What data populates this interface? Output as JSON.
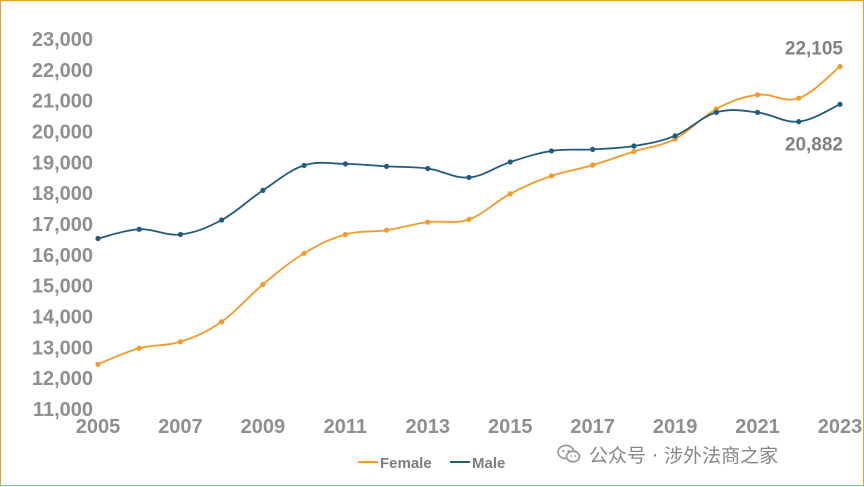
{
  "chart_data": {
    "type": "line",
    "x": [
      2005,
      2006,
      2007,
      2008,
      2009,
      2010,
      2011,
      2012,
      2013,
      2014,
      2015,
      2016,
      2017,
      2018,
      2019,
      2020,
      2021,
      2022,
      2023
    ],
    "xticks": [
      "2005",
      "2007",
      "2009",
      "2011",
      "2013",
      "2015",
      "2017",
      "2019",
      "2021",
      "2023"
    ],
    "yticks": [
      "11,000",
      "12,000",
      "13,000",
      "14,000",
      "15,000",
      "16,000",
      "17,000",
      "18,000",
      "19,000",
      "20,000",
      "21,000",
      "22,000",
      "23,000"
    ],
    "ylim": [
      11000,
      23000
    ],
    "grid": false,
    "legend_position": "bottom",
    "series": [
      {
        "name": "Female",
        "color": "#f39a2b",
        "values": [
          12450,
          12970,
          13180,
          13830,
          15040,
          16050,
          16660,
          16800,
          17060,
          17150,
          17980,
          18560,
          18910,
          19350,
          19760,
          20730,
          21190,
          21080,
          22105
        ],
        "end_label": "22,105"
      },
      {
        "name": "Male",
        "color": "#1f5c7e",
        "values": [
          16530,
          16830,
          16660,
          17130,
          18090,
          18900,
          18950,
          18870,
          18800,
          18510,
          19010,
          19370,
          19420,
          19530,
          19860,
          20620,
          20620,
          20320,
          20882
        ],
        "end_label": "20,882"
      }
    ]
  },
  "watermark": {
    "text": "公众号 · 涉外法商之家",
    "icon": "wechat-icon"
  }
}
